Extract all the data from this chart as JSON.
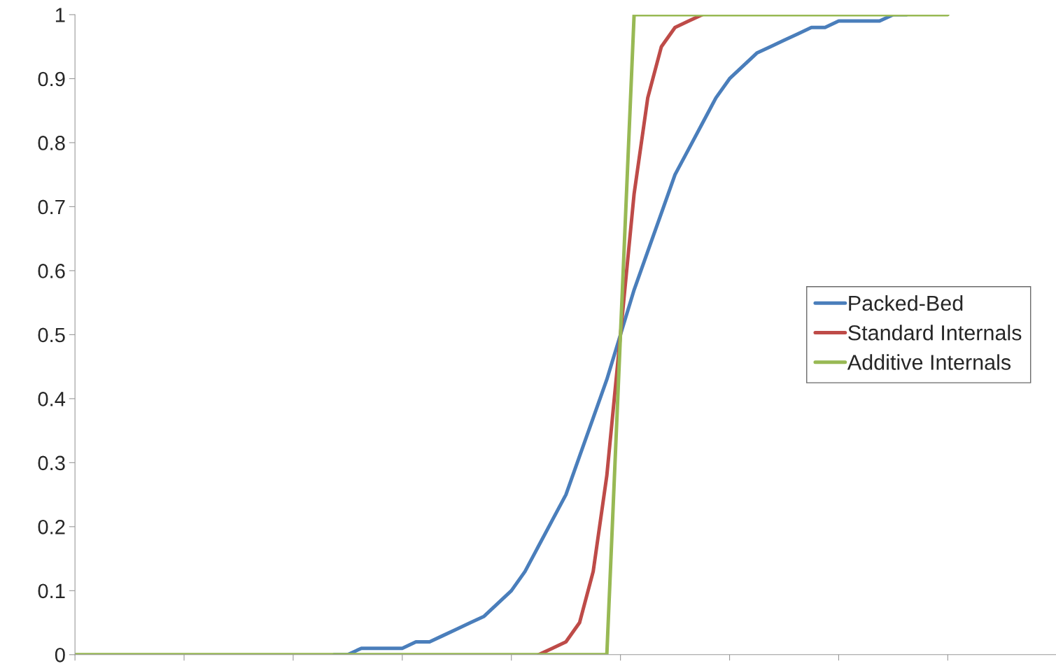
{
  "chart_data": {
    "type": "line",
    "categories": [
      null,
      null,
      null,
      null,
      null,
      null,
      null,
      null,
      null,
      null,
      null,
      null,
      null,
      null,
      null,
      null,
      null,
      null,
      null,
      null,
      null,
      null,
      null,
      null,
      null,
      null,
      null,
      null,
      null,
      null,
      null,
      null,
      null,
      null,
      null,
      null,
      null,
      null,
      null,
      null,
      null,
      null,
      null,
      null,
      null,
      null,
      null,
      null,
      null,
      null,
      null,
      null,
      null,
      null,
      null,
      null,
      null,
      null,
      null,
      null,
      null,
      null,
      null,
      null,
      null
    ],
    "series": [
      {
        "name": "Packed-Bed",
        "color": "#4a7ebb",
        "values": [
          null,
          null,
          null,
          null,
          null,
          null,
          null,
          null,
          null,
          null,
          null,
          null,
          null,
          null,
          null,
          null,
          null,
          null,
          null,
          0,
          0,
          0.01,
          0.01,
          0.01,
          0.01,
          0.02,
          0.02,
          0.03,
          0.04,
          0.05,
          0.06,
          0.08,
          0.1,
          0.13,
          0.17,
          0.21,
          0.25,
          0.31,
          0.37,
          0.43,
          0.5,
          0.57,
          0.63,
          0.69,
          0.75,
          0.79,
          0.83,
          0.87,
          0.9,
          0.92,
          0.94,
          0.95,
          0.96,
          0.97,
          0.98,
          0.98,
          0.99,
          0.99,
          0.99,
          0.99,
          1,
          1,
          null,
          null,
          null
        ]
      },
      {
        "name": "Standard Internals",
        "color": "#be4b48",
        "values": [
          null,
          null,
          null,
          null,
          null,
          null,
          null,
          null,
          null,
          null,
          null,
          null,
          null,
          null,
          null,
          null,
          null,
          null,
          null,
          null,
          null,
          null,
          null,
          null,
          null,
          null,
          null,
          null,
          null,
          null,
          null,
          null,
          null,
          null,
          0,
          0.01,
          0.02,
          0.05,
          0.13,
          0.28,
          0.5,
          0.72,
          0.87,
          0.95,
          0.98,
          0.99,
          1,
          null,
          null,
          null,
          null,
          null,
          null,
          null,
          null,
          null,
          null,
          null,
          null,
          null,
          null,
          null,
          null,
          null,
          null
        ]
      },
      {
        "name": "Additive Internals",
        "color": "#98b954",
        "values": [
          0,
          0,
          0,
          0,
          0,
          0,
          0,
          0,
          0,
          0,
          0,
          0,
          0,
          0,
          0,
          0,
          0,
          0,
          0,
          0,
          0,
          0,
          0,
          0,
          0,
          0,
          0,
          0,
          0,
          0,
          0,
          0,
          0,
          0,
          0,
          0,
          0,
          0,
          0,
          0,
          0.5,
          1,
          1,
          1,
          1,
          1,
          1,
          1,
          1,
          1,
          1,
          1,
          1,
          1,
          1,
          1,
          1,
          1,
          1,
          1,
          1,
          1,
          1,
          1,
          1
        ]
      }
    ],
    "ylim": [
      0,
      1
    ],
    "yticks": [
      0,
      0.1,
      0.2,
      0.3,
      0.4,
      0.5,
      0.6,
      0.7,
      0.8,
      0.9,
      1
    ],
    "tick_labels": "y",
    "legend": "right",
    "grid": false
  }
}
